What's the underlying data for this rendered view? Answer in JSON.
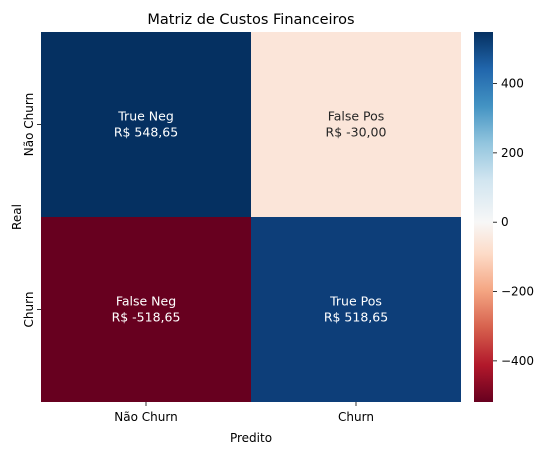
{
  "chart_data": {
    "type": "heatmap",
    "title": "Matriz de Custos Financeiros",
    "xlabel": "Predito",
    "ylabel": "Real",
    "x_categories": [
      "Não Churn",
      "Churn"
    ],
    "y_categories": [
      "Não Churn",
      "Churn"
    ],
    "cells": [
      [
        {
          "name": "True Neg",
          "value": 548.65,
          "label": "R$ 548,65"
        },
        {
          "name": "False Pos",
          "value": -30.0,
          "label": "R$ -30,00"
        }
      ],
      [
        {
          "name": "False Neg",
          "value": -518.65,
          "label": "R$ -518,65"
        },
        {
          "name": "True Pos",
          "value": 518.65,
          "label": "R$ 518,65"
        }
      ]
    ],
    "colormap": "RdBu",
    "color_range": [
      -518.65,
      548.65
    ],
    "colorbar_ticks": [
      -400,
      -200,
      0,
      200,
      400
    ],
    "colorbar_tick_labels": [
      "−400",
      "−200",
      "0",
      "200",
      "400"
    ],
    "colors": {
      "cell_true_neg": "#053061",
      "cell_false_pos": "#fbe5d9",
      "cell_false_neg": "#67001f",
      "cell_true_pos": "#0d3e79"
    }
  }
}
